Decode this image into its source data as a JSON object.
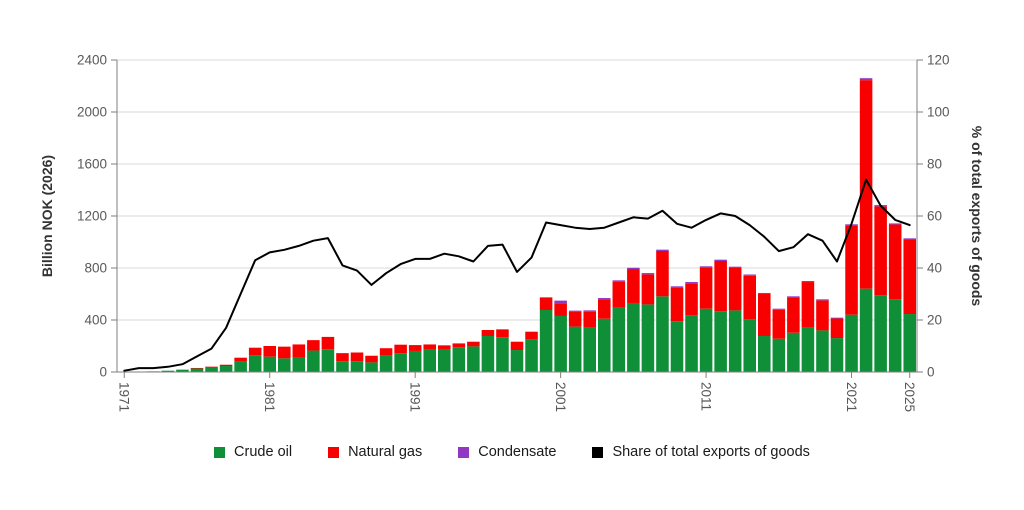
{
  "chart_data": {
    "type": "bar+line",
    "title": "",
    "start_year": 1971,
    "end_year": 2025,
    "x_tick_years": [
      1971,
      1981,
      1991,
      2001,
      2011,
      2021,
      2025
    ],
    "y_left": {
      "label": "Billion NOK (2026)",
      "min": 0,
      "max": 2400,
      "step": 400
    },
    "y_right": {
      "label": "% of total exports of goods",
      "min": 0,
      "max": 120,
      "step": 20
    },
    "grid": true,
    "legend_position": "bottom",
    "bar_series": [
      {
        "name": "Crude oil",
        "color": "#0f9038",
        "values": [
          1,
          3,
          5,
          10,
          18,
          28,
          35,
          46,
          79,
          130,
          118,
          105,
          112,
          165,
          175,
          83,
          83,
          74,
          125,
          145,
          162,
          172,
          177,
          190,
          197,
          277,
          267,
          169,
          251,
          477,
          431,
          349,
          346,
          410,
          500,
          531,
          520,
          582,
          390,
          436,
          487,
          467,
          474,
          405,
          277,
          256,
          302,
          341,
          320,
          261,
          441,
          641,
          590,
          559,
          446
        ]
      },
      {
        "name": "Natural gas",
        "color": "#f80000",
        "values": [
          0,
          0,
          0,
          0,
          0,
          3,
          6,
          10,
          31,
          57,
          82,
          90,
          100,
          80,
          95,
          62,
          67,
          51,
          58,
          65,
          45,
          40,
          28,
          30,
          36,
          46,
          61,
          64,
          59,
          97,
          98,
          113,
          118,
          149,
          195,
          261,
          231,
          349,
          259,
          246,
          316,
          387,
          326,
          335,
          323,
          223,
          272,
          351,
          231,
          151,
          685,
          1604,
          684,
          576,
          576
        ]
      },
      {
        "name": "Condensate",
        "color": "#9137c1",
        "values": [
          0,
          0,
          0,
          0,
          0,
          0,
          0,
          0,
          0,
          0,
          0,
          0,
          0,
          0,
          0,
          0,
          0,
          0,
          0,
          0,
          0,
          0,
          0,
          0,
          0,
          0,
          0,
          0,
          0,
          0,
          20,
          10,
          10,
          10,
          10,
          10,
          10,
          10,
          10,
          10,
          10,
          10,
          10,
          10,
          8,
          8,
          8,
          8,
          8,
          6,
          10,
          15,
          10,
          8,
          6
        ]
      }
    ],
    "line_series": {
      "name": "Share of total exports of goods",
      "color": "#000000",
      "axis": "right",
      "values": [
        0.5,
        1.5,
        1.5,
        2,
        3,
        6,
        9,
        17,
        30,
        43,
        46,
        47,
        48.5,
        50.5,
        51.5,
        41,
        39,
        33.5,
        38,
        41.5,
        43.5,
        43.5,
        45.5,
        44.5,
        42.5,
        48.5,
        49,
        38.5,
        44,
        57.5,
        56.5,
        55.5,
        55,
        55.5,
        57.5,
        59.5,
        59,
        62,
        57,
        55.5,
        58.5,
        61,
        60,
        56.5,
        52,
        46.5,
        48,
        53,
        50.5,
        42.5,
        57,
        74,
        64,
        58.5,
        56.5
      ]
    },
    "colors": {
      "grid": "#d9d9d9",
      "spine": "#7f7f7f",
      "tick_label": "#595959",
      "axis_title": "#333333",
      "legend_text": "#1a1a1a"
    }
  }
}
